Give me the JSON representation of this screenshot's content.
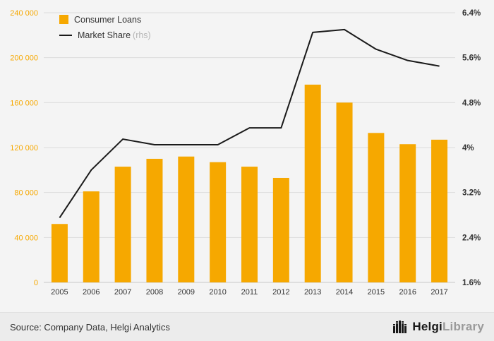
{
  "chart_data": {
    "type": "combo",
    "categories": [
      "2005",
      "2006",
      "2007",
      "2008",
      "2009",
      "2010",
      "2011",
      "2012",
      "2013",
      "2014",
      "2015",
      "2016",
      "2017"
    ],
    "series": [
      {
        "name": "Consumer Loans",
        "type": "bar",
        "axis": "left",
        "values": [
          52000,
          81000,
          103000,
          110000,
          112000,
          107000,
          103000,
          93000,
          176000,
          160000,
          133000,
          123000,
          127000
        ]
      },
      {
        "name": "Market Share",
        "suffix": "(rhs)",
        "type": "line",
        "axis": "right",
        "values": [
          2.75,
          3.6,
          4.15,
          4.05,
          4.05,
          4.05,
          4.35,
          4.35,
          6.05,
          6.1,
          5.75,
          5.55,
          5.45
        ]
      }
    ],
    "left_axis": {
      "min": 0,
      "max": 240000,
      "tick_values": [
        0,
        40000,
        80000,
        120000,
        160000,
        200000,
        240000
      ],
      "ticks": [
        "0",
        "40 000",
        "80 000",
        "120 000",
        "160 000",
        "200 000",
        "240 000"
      ]
    },
    "right_axis": {
      "min": 1.6,
      "max": 6.4,
      "tick_values": [
        1.6,
        2.4,
        3.2,
        4.0,
        4.8,
        5.6,
        6.4
      ],
      "ticks": [
        "1.6%",
        "2.4%",
        "3.2%",
        "4%",
        "4.8%",
        "5.6%",
        "6.4%"
      ]
    },
    "colors": {
      "bar": "#F6A800",
      "line": "#1A1A1A",
      "grid": "#DCDCDC",
      "baseline": "#C9C9C9",
      "axis_text": "#333333",
      "rhs_suffix": "#B5B5B5",
      "background": "#F4F4F4"
    },
    "grid": true,
    "legend_position": "top-left"
  },
  "footer": {
    "source": "Source: Company Data, Helgi Analytics",
    "logo_primary": "Helgi",
    "logo_secondary": "Library"
  }
}
